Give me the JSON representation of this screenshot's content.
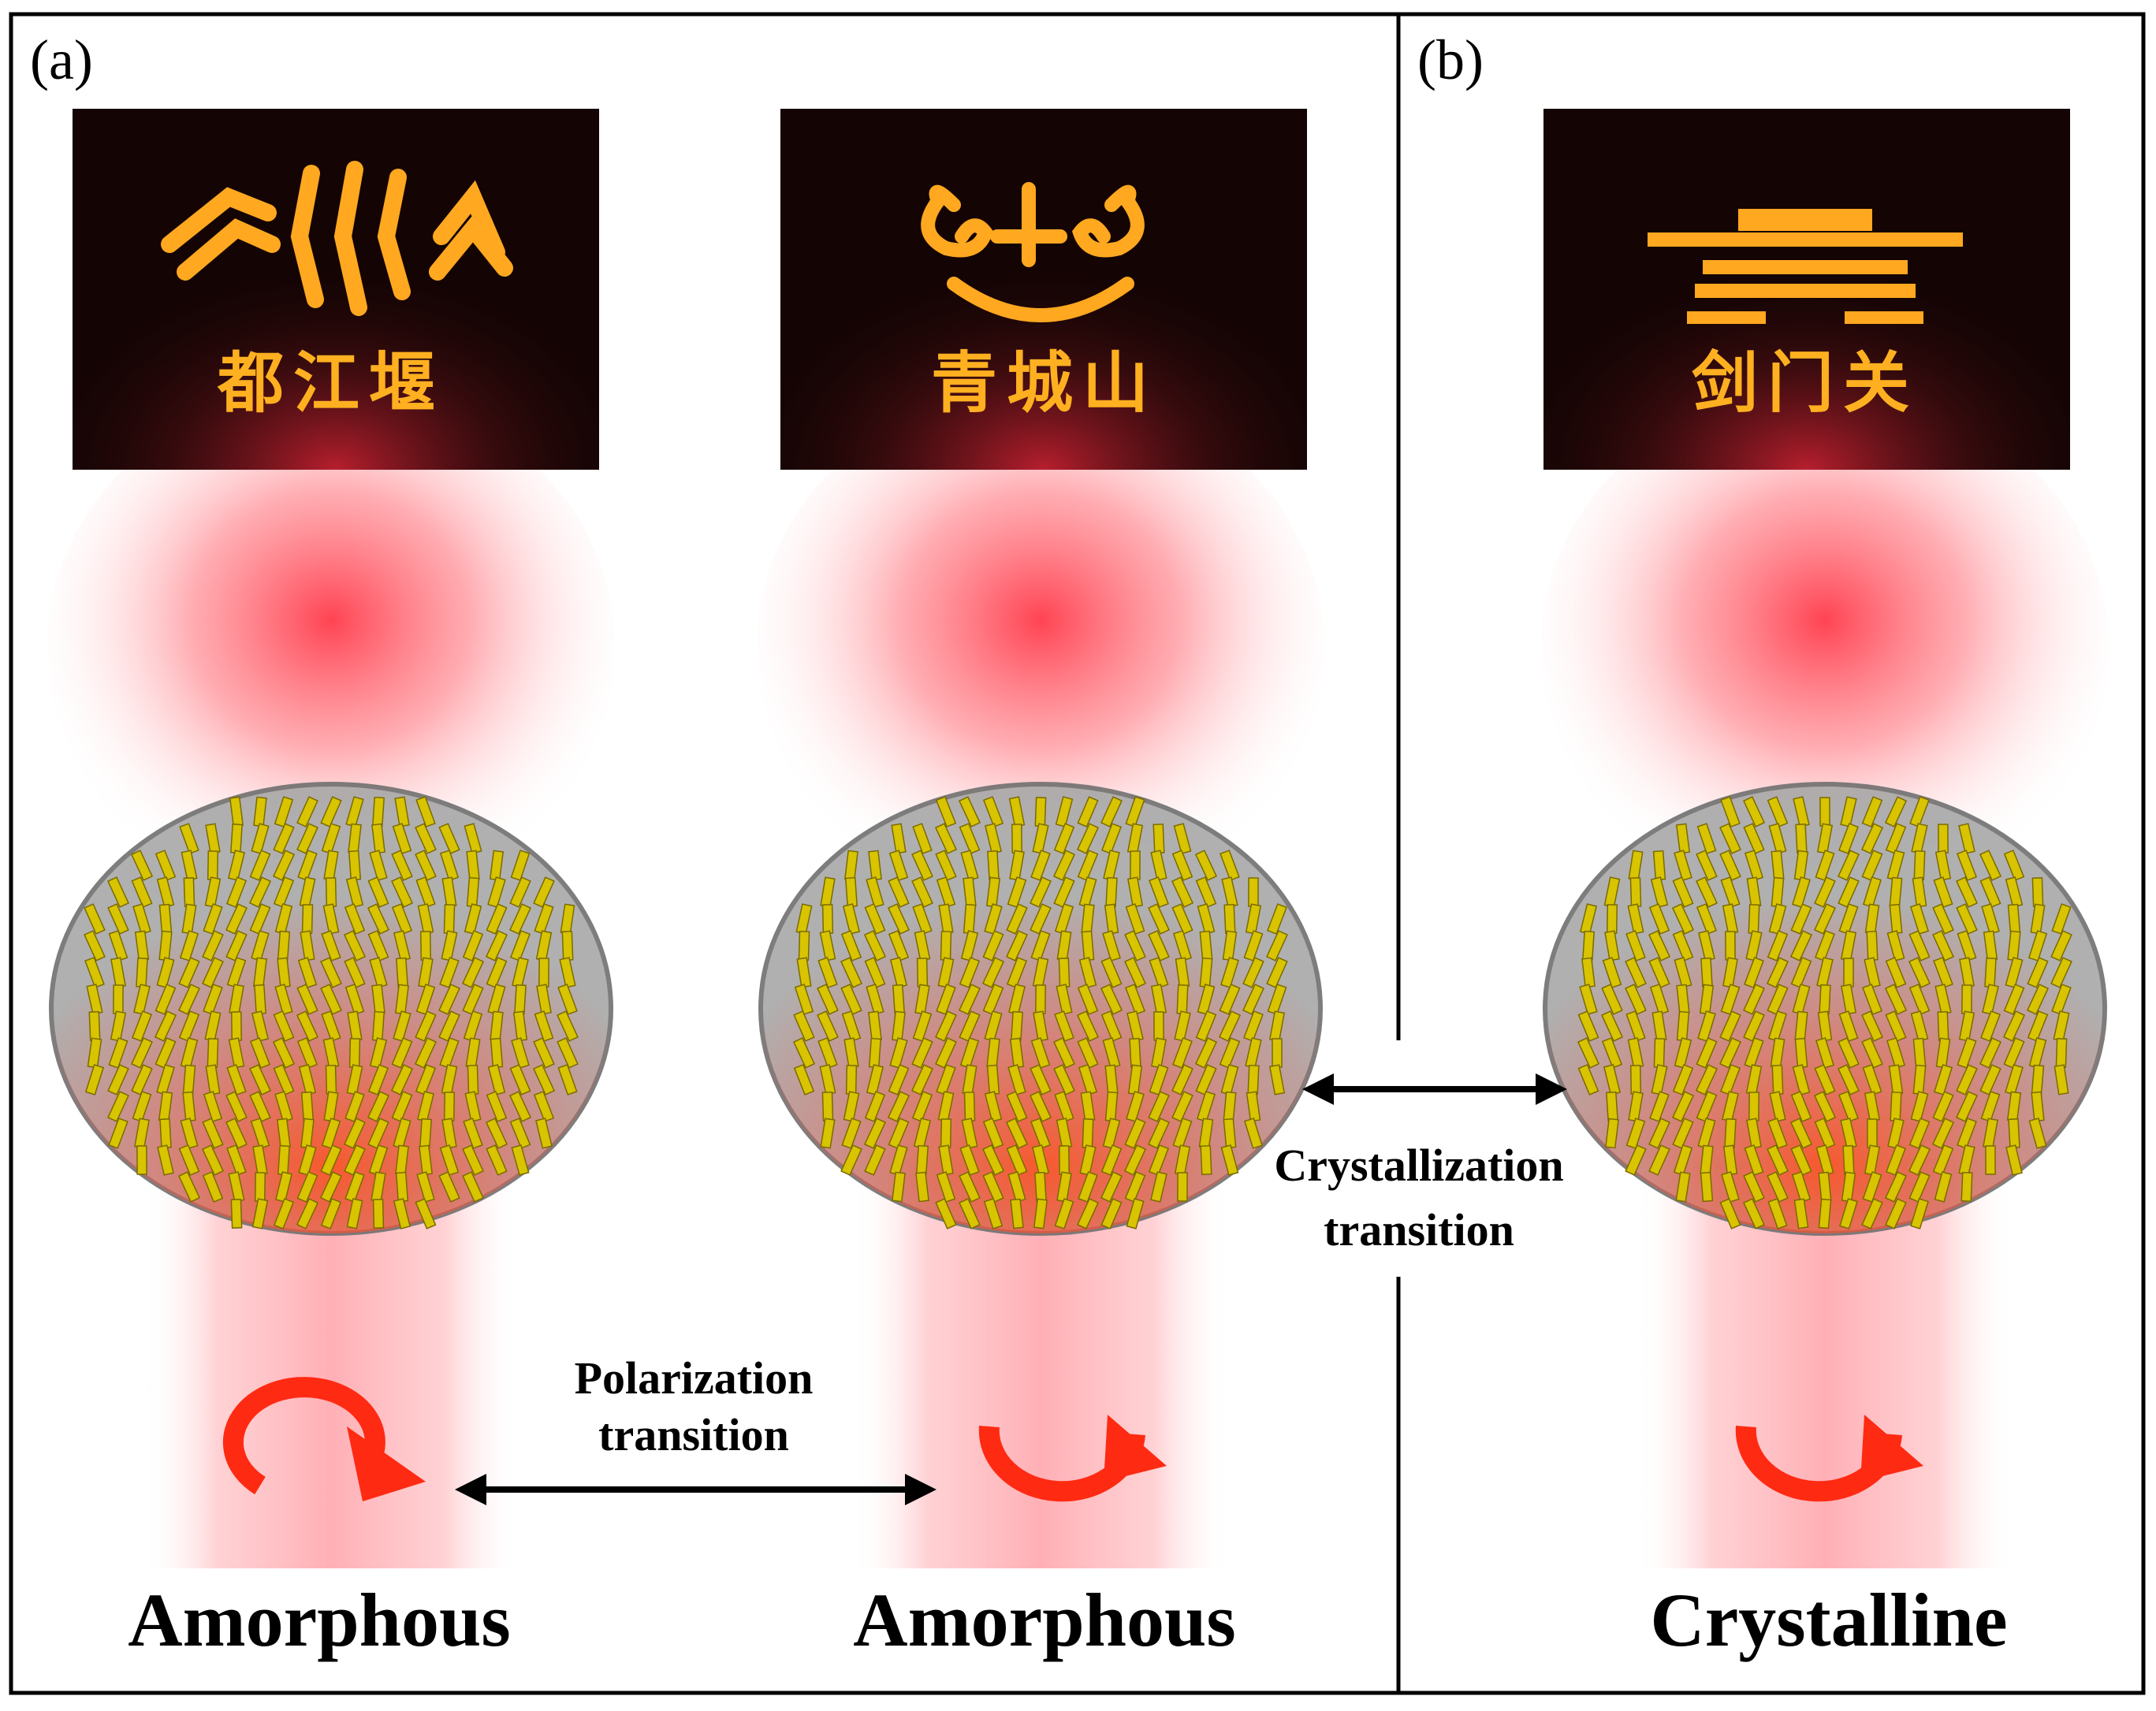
{
  "panels": [
    {
      "label": "(a)",
      "columns": [
        {
          "state": "Amorphous",
          "hologram_caption": "都江堰",
          "hologram_glyph": "dujiangyan-glyph",
          "incident_polarization": "left-circular"
        },
        {
          "state": "Amorphous",
          "hologram_caption": "青城山",
          "hologram_glyph": "qingchengshan-glyph",
          "incident_polarization": "right-circular"
        }
      ],
      "transition_label_line1": "Polarization",
      "transition_label_line2": "transition"
    },
    {
      "label": "(b)",
      "columns": [
        {
          "state": "Crystalline",
          "hologram_caption": "剑门关",
          "hologram_glyph": "jianmenguan-glyph",
          "incident_polarization": "right-circular"
        }
      ]
    }
  ],
  "crystallization_label_line1": "Crystallization",
  "crystallization_label_line2": "transition",
  "colors": {
    "beam": "#ff3a4a",
    "hologram_bg": "#140404",
    "hologram_glyph": "#ffa820",
    "nanorod": "#d8c400",
    "substrate": "#a8a8a8",
    "pol_arrow": "#ff2a12"
  }
}
